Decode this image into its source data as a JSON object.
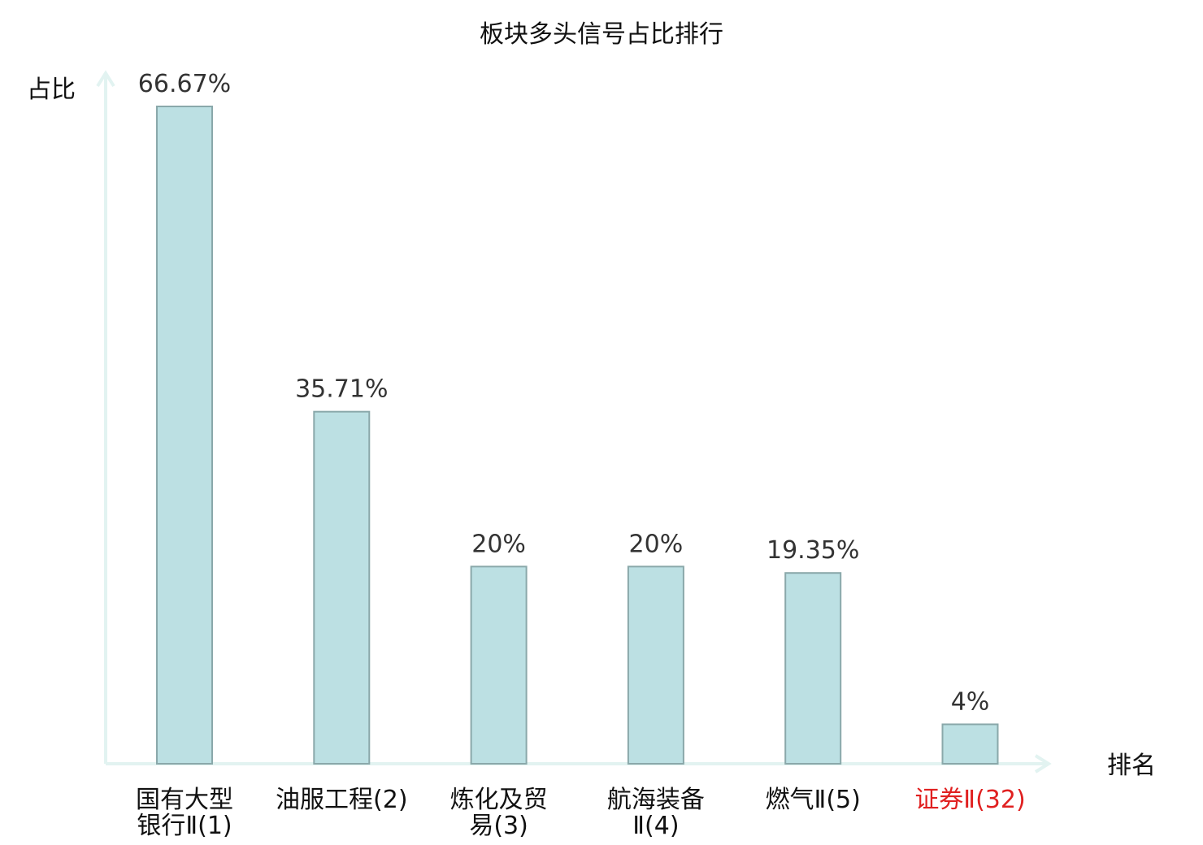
{
  "chart_data": {
    "type": "bar",
    "title": "板块多头信号占比排行",
    "ylabel": "占比",
    "xlabel": "排名",
    "categories": [
      [
        "国有大型",
        "银行Ⅱ(1)"
      ],
      [
        "油服工程(2)"
      ],
      [
        "炼化及贸",
        "易(3)"
      ],
      [
        "航海装备",
        "Ⅱ(4)"
      ],
      [
        "燃气Ⅱ(5)"
      ],
      [
        "证券Ⅱ(32)"
      ]
    ],
    "values": [
      66.67,
      35.71,
      20,
      20,
      19.35,
      4
    ],
    "value_labels": [
      "66.67%",
      "35.71%",
      "20%",
      "20%",
      "19.35%",
      "4%"
    ],
    "highlighted_category_index": 5,
    "ylim": [
      0,
      70
    ],
    "grid": false,
    "legend": "none",
    "colors": {
      "bar_fill": "#bce0e3",
      "bar_stroke": "#8aa8aa",
      "axis": "#e2f3f1",
      "highlight_text": "#e02020",
      "normal_text": "#111111"
    }
  }
}
